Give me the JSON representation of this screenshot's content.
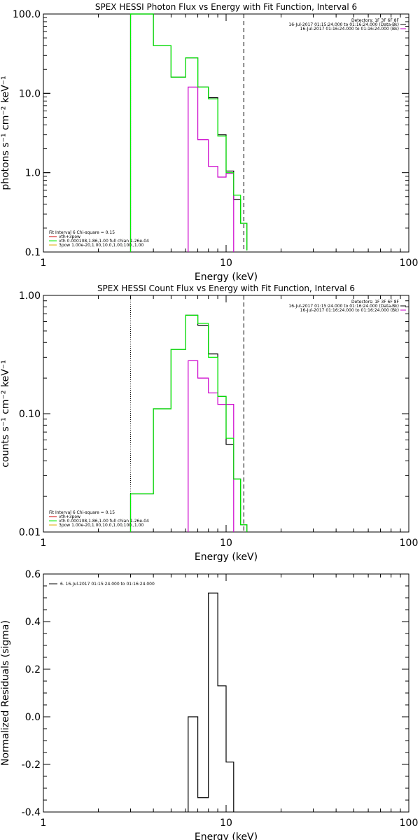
{
  "chart_data": [
    {
      "type": "line",
      "title": "SPEX HESSI Photon Flux vs Energy with Fit Function, Interval 6",
      "xlabel": "Energy (keV)",
      "ylabel": "photons s⁻¹ cm⁻² keV⁻¹",
      "xscale": "log",
      "yscale": "log",
      "xlim": [
        1,
        100
      ],
      "ylim": [
        0.1,
        100
      ],
      "xticks": [
        "1",
        "10",
        "100"
      ],
      "yticks": [
        "0.1",
        "1.0",
        "10.0",
        "100.0"
      ],
      "header_lines": [
        "Detectors: 1F 3F 6F 8F",
        "16-Jul-2017 01:15:24.000 to 01:16:24.000 (Data-Bk)",
        "16-Jul-2017 01:16:24.000 to 01:16:24.000 (Bk)"
      ],
      "fit_lines": [
        "Fit Interval 6   Chi-square = 0.15",
        "vth+3pow",
        "vth 0.000108,1.86,1.00   full chian 1.26e-04",
        "3pow 1.00e-20,1.00,10.0,1.00,100.,1.00"
      ],
      "vlines": {
        "dotted": 3.0,
        "dashed": 12.5
      },
      "series": [
        {
          "key": "data_minus_bk",
          "color": "#000000",
          "edges": [
            3,
            4,
            5,
            6,
            7,
            8,
            9,
            10,
            11,
            12,
            13
          ],
          "values": [
            100,
            40,
            16,
            28,
            12,
            8.8,
            3.0,
            1.05,
            0.46,
            0.23,
            0.105
          ]
        },
        {
          "key": "bk",
          "color": "#cc00cc",
          "edges": [
            6.2,
            7,
            8,
            9,
            10,
            11
          ],
          "values": [
            12,
            2.6,
            1.2,
            0.88,
            0.98
          ]
        },
        {
          "key": "fit_total",
          "color": "#00ee00",
          "edges": [
            3,
            4,
            5,
            6,
            7,
            8,
            9,
            10,
            11,
            12,
            13
          ],
          "values": [
            100,
            40,
            16,
            28,
            12,
            8.5,
            2.9,
            1.0,
            0.52,
            0.23,
            0.105
          ]
        }
      ]
    },
    {
      "type": "line",
      "title": "SPEX HESSI Count Flux vs Energy with Fit Function, Interval 6",
      "xlabel": "Energy (keV)",
      "ylabel": "counts s⁻¹ cm⁻² keV⁻¹",
      "xscale": "log",
      "yscale": "log",
      "xlim": [
        1,
        100
      ],
      "ylim": [
        0.01,
        1.0
      ],
      "xticks": [
        "1",
        "10",
        "100"
      ],
      "yticks": [
        "0.01",
        "0.10",
        "1.00"
      ],
      "header_lines": [
        "Detectors: 1F 3F 6F 8F",
        "16-Jul-2017 01:15:24.000 to 01:16:24.000 (Data-Bk)",
        "16-Jul-2017 01:16:24.000 to 01:16:24.000 (Bk)"
      ],
      "fit_lines": [
        "Fit Interval 6   Chi-square = 0.15",
        "vth+3pow",
        "vth 0.000108,1.86,1.00   full chian 1.26e-04",
        "3pow 1.00e-20,1.00,10.0,1.00,100.,1.00"
      ],
      "vlines": {
        "dotted": 3.0,
        "dashed": 12.5
      },
      "series": [
        {
          "key": "data_minus_bk",
          "color": "#000000",
          "edges": [
            3,
            4,
            5,
            6,
            7,
            8,
            9,
            10,
            11,
            12,
            13
          ],
          "values": [
            0.021,
            0.11,
            0.35,
            0.68,
            0.56,
            0.32,
            0.14,
            0.055,
            0.028,
            0.0115
          ]
        },
        {
          "key": "bk",
          "color": "#cc00cc",
          "edges": [
            6.2,
            7,
            8,
            9,
            10,
            11
          ],
          "values": [
            0.28,
            0.2,
            0.15,
            0.12,
            0.12
          ]
        },
        {
          "key": "fit_total",
          "color": "#00ee00",
          "edges": [
            3,
            4,
            5,
            6,
            7,
            8,
            9,
            10,
            11,
            12,
            13
          ],
          "values": [
            0.021,
            0.11,
            0.35,
            0.68,
            0.58,
            0.3,
            0.14,
            0.062,
            0.028,
            0.0115
          ]
        }
      ]
    },
    {
      "type": "line",
      "title": "",
      "xlabel": "Energy (keV)",
      "ylabel": "Normalized Residuals (sigma)",
      "xscale": "log",
      "yscale": "linear",
      "xlim": [
        1,
        100
      ],
      "ylim": [
        -0.4,
        0.6
      ],
      "xticks": [
        "1",
        "10",
        "100"
      ],
      "yticks": [
        "-0.4",
        "-0.2",
        "0.0",
        "0.2",
        "0.4",
        "0.6"
      ],
      "legend": "6. 16-Jul-2017 01:15:24.000 to 01:16:24.000",
      "series": [
        {
          "key": "residuals",
          "color": "#000000",
          "edges": [
            6.2,
            7,
            8,
            9,
            10,
            11
          ],
          "values": [
            0.0,
            -0.34,
            0.52,
            0.13,
            -0.19
          ]
        }
      ]
    }
  ]
}
